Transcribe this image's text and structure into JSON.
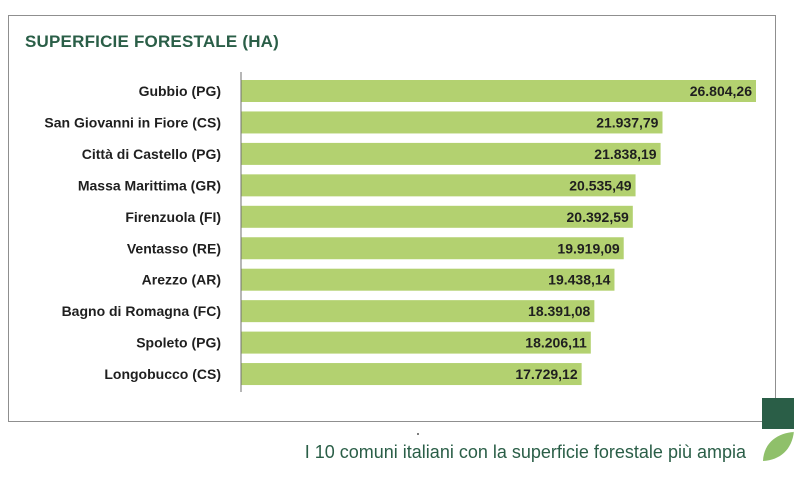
{
  "colors": {
    "bar": "#b3d170",
    "title": "#2a5e47",
    "text": "#1f1f1f",
    "axis": "#6f6f6f",
    "brand_dark": "#2a5e47",
    "brand_light": "#8fc06a"
  },
  "caption": "I 10 comuni italiani con la superficie forestale più ampia",
  "chart_data": {
    "type": "bar",
    "orientation": "horizontal",
    "title": "SUPERFICIE FORESTALE (HA)",
    "categories": [
      "Gubbio (PG)",
      "San Giovanni in Fiore (CS)",
      "Città di Castello (PG)",
      "Massa Marittima (GR)",
      "Firenzuola (FI)",
      "Ventasso (RE)",
      "Arezzo (AR)",
      "Bagno di Romagna (FC)",
      "Spoleto (PG)",
      "Longobucco (CS)"
    ],
    "values": [
      26804.26,
      21937.79,
      21838.19,
      20535.49,
      20392.59,
      19919.09,
      19438.14,
      18391.08,
      18206.11,
      17729.12
    ],
    "value_labels": [
      "26.804,26",
      "21.937,79",
      "21.838,19",
      "20.535,49",
      "20.392,59",
      "19.919,09",
      "19.438,14",
      "18.391,08",
      "18.206,11",
      "17.729,12"
    ],
    "xlim": [
      0,
      26804.26
    ],
    "grid": false,
    "legend": "none"
  }
}
